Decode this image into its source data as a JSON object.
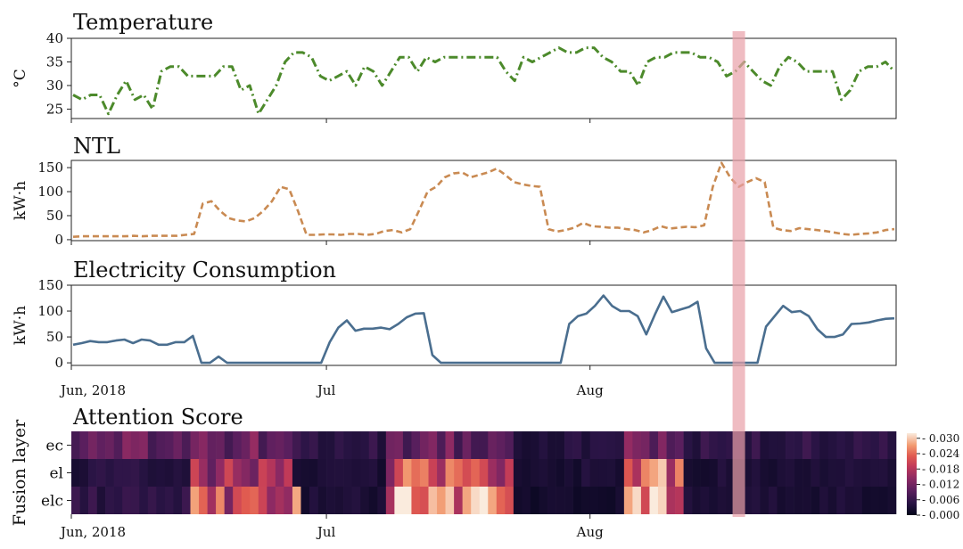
{
  "chart_data": [
    {
      "type": "line",
      "title": "Temperature",
      "ylabel": "°C",
      "ylim": [
        23,
        40
      ],
      "yticks": [
        "25",
        "30",
        "35",
        "40"
      ],
      "style": "dash-dot",
      "color": "#4c8a2b",
      "x_start_day": 0,
      "values": [
        28,
        27,
        28,
        28,
        24,
        28,
        31,
        27,
        28,
        25,
        33,
        34,
        34,
        32,
        32,
        32,
        32,
        34,
        34,
        29,
        30,
        24,
        27,
        30,
        35,
        37,
        37,
        36,
        32,
        31,
        32,
        33,
        30,
        34,
        33,
        30,
        33,
        36,
        36,
        33,
        36,
        35,
        36,
        36,
        36,
        36,
        36,
        36,
        36,
        33,
        31,
        36,
        35,
        36,
        37,
        38,
        37,
        37,
        38,
        38,
        36,
        35,
        33,
        33,
        30,
        35,
        36,
        36,
        37,
        37,
        37,
        36,
        36,
        35,
        32,
        33,
        35,
        33,
        31,
        30,
        34,
        36,
        35,
        33,
        33,
        33,
        33,
        27,
        29,
        33,
        34,
        34,
        35,
        33
      ]
    },
    {
      "type": "line",
      "title": "NTL",
      "ylabel": "kW·h",
      "ylim": [
        -2,
        165
      ],
      "yticks": [
        "0",
        "50",
        "100",
        "150"
      ],
      "style": "dashed",
      "color": "#c98a52",
      "x_start_day": 0,
      "values": [
        6,
        7,
        7,
        7,
        7,
        7,
        7,
        8,
        7,
        8,
        8,
        8,
        8,
        10,
        12,
        75,
        80,
        60,
        45,
        40,
        38,
        45,
        60,
        80,
        110,
        105,
        60,
        10,
        10,
        11,
        11,
        10,
        12,
        12,
        10,
        12,
        18,
        20,
        15,
        22,
        60,
        100,
        110,
        130,
        138,
        140,
        130,
        135,
        140,
        148,
        135,
        120,
        115,
        112,
        110,
        22,
        17,
        20,
        25,
        35,
        28,
        27,
        25,
        25,
        22,
        20,
        15,
        20,
        28,
        23,
        25,
        27,
        26,
        30,
        110,
        160,
        130,
        110,
        120,
        128,
        120,
        25,
        20,
        18,
        24,
        22,
        20,
        18,
        15,
        12,
        10,
        12,
        13,
        15,
        20,
        22
      ]
    },
    {
      "type": "line",
      "title": "Electricity Consumption",
      "ylabel": "kW·h",
      "ylim": [
        -5,
        150
      ],
      "yticks": [
        "0",
        "50",
        "100",
        "150"
      ],
      "xticks": [
        "Jun, 2018",
        "Jul",
        "Aug"
      ],
      "style": "solid",
      "color": "#4a6e8f",
      "x_start_day": 0,
      "values": [
        35,
        38,
        42,
        40,
        40,
        43,
        45,
        38,
        45,
        43,
        35,
        35,
        40,
        40,
        52,
        0,
        0,
        12,
        0,
        0,
        0,
        0,
        0,
        0,
        0,
        0,
        0,
        0,
        0,
        0,
        40,
        68,
        82,
        62,
        66,
        66,
        68,
        65,
        75,
        88,
        95,
        96,
        15,
        0,
        0,
        0,
        0,
        0,
        0,
        0,
        0,
        0,
        0,
        0,
        0,
        0,
        0,
        0,
        75,
        90,
        95,
        110,
        130,
        110,
        100,
        100,
        90,
        55,
        93,
        128,
        98,
        103,
        108,
        118,
        28,
        0,
        0,
        0,
        0,
        0,
        0,
        70,
        90,
        110,
        98,
        100,
        90,
        65,
        50,
        50,
        55,
        75,
        76,
        78,
        82,
        85,
        86
      ]
    },
    {
      "type": "heatmap",
      "title": "Attention Score",
      "ylabel": "Fusion layer",
      "rows": [
        "ec",
        "el",
        "elc"
      ],
      "xticks": [
        "Jun, 2018",
        "Jul",
        "Aug"
      ],
      "colorbar_ticks": [
        "0.030",
        "0.024",
        "0.018",
        "0.012",
        "0.006",
        "0.000"
      ],
      "vmin": 0.0,
      "vmax": 0.032,
      "segments": [
        {
          "from": 0,
          "to": 14,
          "ec": 0.01,
          "el": 0.004,
          "elc": 0.005
        },
        {
          "from": 14,
          "to": 26,
          "ec": 0.011,
          "el": 0.015,
          "elc": 0.02
        },
        {
          "from": 26,
          "to": 37,
          "ec": 0.005,
          "el": 0.003,
          "elc": 0.003
        },
        {
          "from": 37,
          "to": 52,
          "ec": 0.011,
          "el": 0.02,
          "elc": 0.024
        },
        {
          "from": 52,
          "to": 65,
          "ec": 0.004,
          "el": 0.003,
          "elc": 0.002
        },
        {
          "from": 65,
          "to": 72,
          "ec": 0.012,
          "el": 0.022,
          "elc": 0.025
        },
        {
          "from": 72,
          "to": 96,
          "ec": 0.005,
          "el": 0.003,
          "elc": 0.003
        }
      ],
      "hot_cells": [
        {
          "row": "elc",
          "day": 26,
          "value": 0.028
        },
        {
          "row": "elc",
          "day": 47,
          "value": 0.031
        },
        {
          "row": "elc",
          "day": 66,
          "value": 0.031
        },
        {
          "row": "el",
          "day": 44,
          "value": 0.026
        },
        {
          "row": "elc",
          "day": 17,
          "value": 0.026
        }
      ]
    }
  ],
  "highlight": {
    "day": 78.5,
    "color": "#e8a0a8"
  }
}
